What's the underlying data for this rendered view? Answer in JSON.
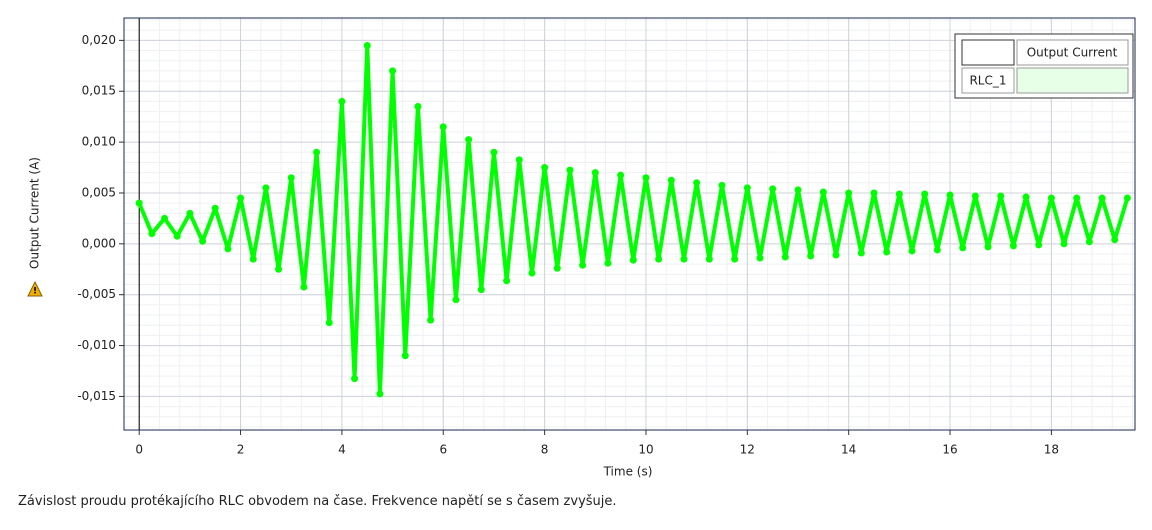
{
  "chart_data": {
    "type": "scatter",
    "x_label": "Time (s)",
    "y_label": "Output Current (A)",
    "legend_title": "Output Current",
    "caption": "Závislost proudu protékajícího RLC obvodem na čase. Frekvence napětí se s časem zvyšuje.",
    "xlim": [
      -0.3,
      19.65
    ],
    "ylim": [
      -0.0183,
      0.0222
    ],
    "xticks": [
      0,
      2,
      4,
      6,
      8,
      10,
      12,
      14,
      16,
      18
    ],
    "yticks": [
      {
        "value": -0.015,
        "label": "-0,015"
      },
      {
        "value": -0.01,
        "label": "-0,010"
      },
      {
        "value": -0.005,
        "label": "-0,005"
      },
      {
        "value": 0,
        "label": "0,000"
      },
      {
        "value": 0.005,
        "label": "0,005"
      },
      {
        "value": 0.01,
        "label": "0,010"
      },
      {
        "value": 0.015,
        "label": "0,015"
      },
      {
        "value": 0.02,
        "label": "0,020"
      }
    ],
    "grid": true,
    "series": [
      {
        "name": "RLC_1",
        "color": "#00ff00",
        "x": [
          0,
          0.25,
          0.5,
          0.75,
          1,
          1.25,
          1.5,
          1.75,
          2,
          2.25,
          2.5,
          2.75,
          3,
          3.25,
          3.5,
          3.75,
          4,
          4.25,
          4.5,
          4.75,
          5,
          5.25,
          5.5,
          5.75,
          6,
          6.25,
          6.5,
          6.75,
          7,
          7.25,
          7.5,
          7.75,
          8,
          8.25,
          8.5,
          8.75,
          9,
          9.25,
          9.5,
          9.75,
          10,
          10.25,
          10.5,
          10.75,
          11,
          11.25,
          11.5,
          11.75,
          12,
          12.25,
          12.5,
          12.75,
          13,
          13.25,
          13.5,
          13.75,
          14,
          14.25,
          14.5,
          14.75,
          15,
          15.25,
          15.5,
          15.75,
          16,
          16.25,
          16.5,
          16.75,
          17,
          17.25,
          17.5,
          17.75,
          18,
          18.25,
          18.5,
          18.75,
          19,
          19.25,
          19.5
        ],
        "values": [
          0.004,
          0.001,
          0.0025,
          0.00075,
          0.003,
          0.00025,
          0.0035,
          -0.0005,
          0.0045,
          -0.0015,
          0.0055,
          -0.0025,
          0.0065,
          -0.00425,
          0.009,
          -0.00775,
          0.014,
          -0.01325,
          0.0195,
          -0.01475,
          0.017,
          -0.011,
          0.0135,
          -0.0075,
          0.0115,
          -0.0055,
          0.01025,
          -0.0045,
          0.009,
          -0.003625,
          0.00825,
          -0.002875,
          0.0075,
          -0.0024,
          0.00725,
          -0.0021,
          0.007,
          -0.0019,
          0.00675,
          -0.0016,
          0.0065,
          -0.0015,
          0.00625,
          -0.0015,
          0.006,
          -0.0015,
          0.00575,
          -0.0015,
          0.0055,
          -0.0014,
          0.0054,
          -0.0013,
          0.0053,
          -0.0012,
          0.0051,
          -0.0011,
          0.005,
          -0.0009,
          0.005,
          -0.0008,
          0.0049,
          -0.0007,
          0.0049,
          -0.0006,
          0.0048,
          -0.0004,
          0.0047,
          -0.0003,
          0.0047,
          -0.0002,
          0.0046,
          -0.0001,
          0.0045,
          0,
          0.0045,
          0.0002,
          0.0045,
          0.0004,
          0.0045
        ]
      }
    ]
  }
}
